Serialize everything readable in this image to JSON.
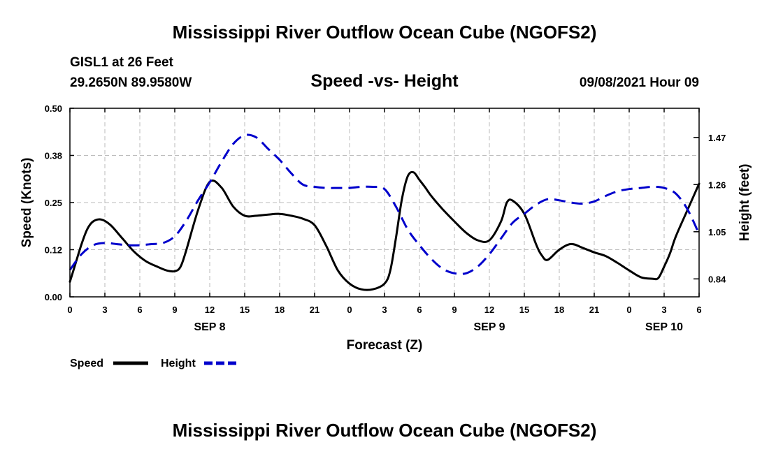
{
  "chart_data": {
    "type": "line",
    "title": "Mississippi River Outflow Ocean Cube (NGOFS2)",
    "footer_title": "Mississippi River Outflow Ocean Cube (NGOFS2)",
    "subtitle": "Speed -vs- Height",
    "station": "GISL1 at 26 Feet",
    "coordinates": "29.2650N  89.9580W",
    "run": "09/08/2021 Hour 09",
    "xlabel": "Forecast (Z)",
    "ylabel": "Speed (Knots)",
    "y2label": "Height (feet)",
    "xlim": [
      0,
      54
    ],
    "x_ticks": [
      0,
      3,
      6,
      9,
      12,
      15,
      18,
      21,
      24,
      27,
      30,
      33,
      36,
      39,
      42,
      45,
      48,
      51,
      54
    ],
    "x_tick_labels": [
      "0",
      "3",
      "6",
      "9",
      "12",
      "15",
      "18",
      "21",
      "0",
      "3",
      "6",
      "9",
      "12",
      "15",
      "18",
      "21",
      "0",
      "3",
      "6"
    ],
    "date_labels": [
      {
        "x": 12,
        "label": "SEP 8"
      },
      {
        "x": 36,
        "label": "SEP 9"
      },
      {
        "x": 51,
        "label": "SEP 10"
      }
    ],
    "ylim": [
      0,
      0.5
    ],
    "y_ticks": [
      0.0,
      0.125,
      0.25,
      0.375,
      0.5
    ],
    "y_tick_labels": [
      "0.00",
      "0.12",
      "0.25",
      "0.38",
      "0.50"
    ],
    "y2lim": [
      0.76,
      1.6
    ],
    "y2_ticks": [
      0.84,
      1.05,
      1.26,
      1.47
    ],
    "y2_tick_labels": [
      "0.84",
      "1.05",
      "1.26",
      "1.47"
    ],
    "grid": true,
    "series": [
      {
        "name": "Speed",
        "axis": "left",
        "color": "#000000",
        "dash": "solid",
        "x": [
          0,
          0.5,
          1,
          1.5,
          2,
          2.7,
          3.5,
          4.5,
          5.5,
          6.5,
          7.5,
          8.3,
          9,
          9.5,
          10,
          11,
          12,
          13,
          14,
          15,
          16,
          17,
          18,
          19,
          20,
          21,
          22,
          23,
          24,
          25,
          26,
          27,
          27.5,
          28,
          28.5,
          29,
          29.5,
          30,
          30.5,
          31,
          32,
          33,
          34,
          35,
          36,
          37,
          37.5,
          38,
          39,
          40,
          40.5,
          41,
          42,
          43,
          44,
          45,
          46,
          47,
          48,
          49,
          50,
          50.5,
          51,
          51.5,
          52,
          53,
          54
        ],
        "values": [
          0.04,
          0.09,
          0.14,
          0.18,
          0.2,
          0.205,
          0.19,
          0.155,
          0.12,
          0.095,
          0.08,
          0.07,
          0.068,
          0.08,
          0.125,
          0.23,
          0.305,
          0.29,
          0.24,
          0.215,
          0.215,
          0.218,
          0.22,
          0.215,
          0.207,
          0.19,
          0.135,
          0.07,
          0.035,
          0.02,
          0.02,
          0.035,
          0.07,
          0.16,
          0.26,
          0.32,
          0.33,
          0.31,
          0.29,
          0.268,
          0.232,
          0.2,
          0.17,
          0.15,
          0.15,
          0.2,
          0.25,
          0.255,
          0.22,
          0.14,
          0.11,
          0.098,
          0.125,
          0.14,
          0.13,
          0.118,
          0.108,
          0.09,
          0.07,
          0.052,
          0.048,
          0.05,
          0.08,
          0.115,
          0.16,
          0.23,
          0.3
        ]
      },
      {
        "name": "Height",
        "axis": "right",
        "color": "#0000cc",
        "dash": "dashed",
        "x": [
          0,
          1,
          2,
          3,
          4,
          5,
          6,
          7,
          8,
          9,
          10,
          11,
          12,
          13,
          14,
          15,
          16,
          17,
          18,
          19,
          20,
          21,
          22,
          23,
          24,
          25,
          26,
          27,
          28,
          29,
          30,
          31,
          32,
          33,
          34,
          35,
          36,
          37,
          38,
          39,
          40,
          41,
          42,
          43,
          44,
          45,
          46,
          47,
          48,
          49,
          50,
          51,
          52,
          53,
          54
        ],
        "values": [
          0.88,
          0.95,
          0.99,
          1.0,
          0.995,
          0.99,
          0.99,
          0.995,
          1.0,
          1.03,
          1.1,
          1.19,
          1.27,
          1.36,
          1.44,
          1.48,
          1.47,
          1.42,
          1.37,
          1.31,
          1.26,
          1.25,
          1.245,
          1.245,
          1.245,
          1.25,
          1.25,
          1.24,
          1.16,
          1.06,
          0.99,
          0.93,
          0.885,
          0.865,
          0.865,
          0.895,
          0.95,
          1.02,
          1.09,
          1.13,
          1.17,
          1.195,
          1.19,
          1.18,
          1.175,
          1.185,
          1.21,
          1.23,
          1.24,
          1.245,
          1.25,
          1.245,
          1.22,
          1.15,
          1.04
        ]
      }
    ],
    "legend": {
      "placement": "bottom-left",
      "entries": [
        {
          "label": "Speed",
          "color": "#000000",
          "dash": "solid"
        },
        {
          "label": "Height",
          "color": "#0000cc",
          "dash": "dashed"
        }
      ]
    }
  }
}
